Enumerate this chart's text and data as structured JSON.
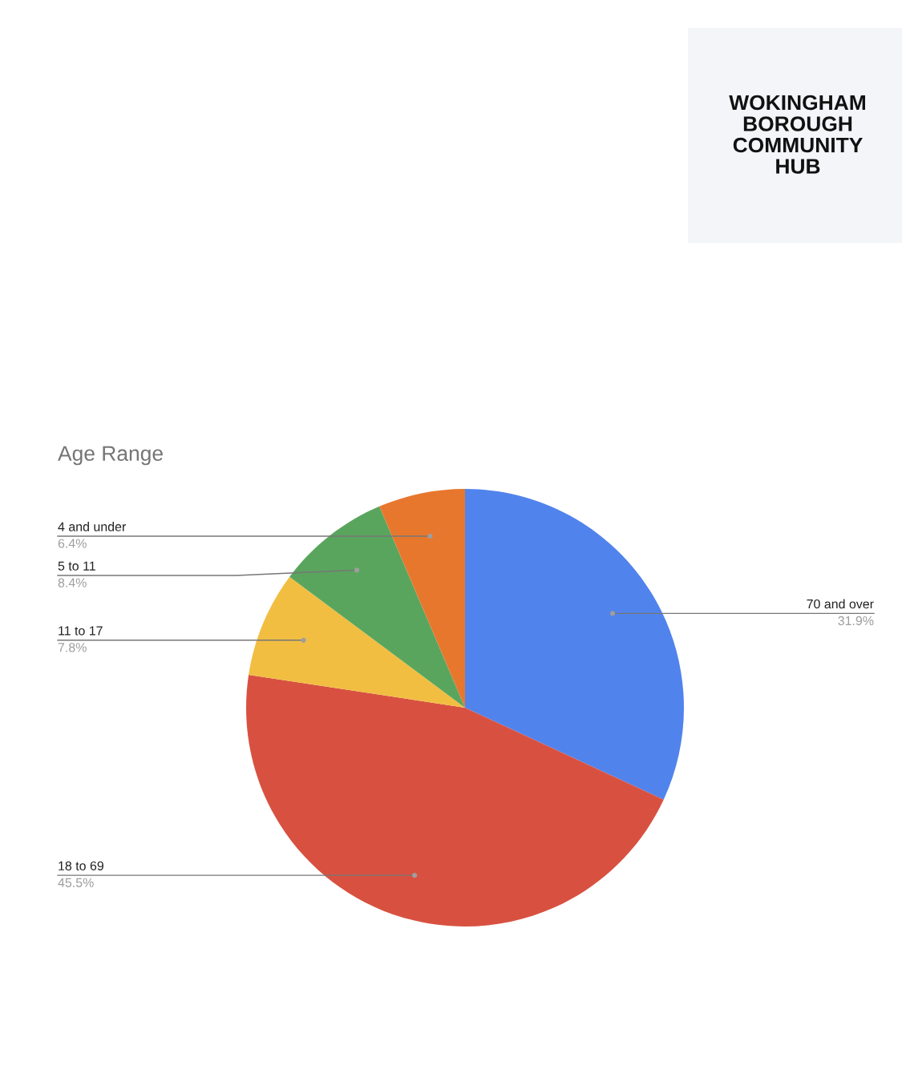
{
  "chart_data": {
    "type": "pie",
    "title": "Age Range",
    "categories": [
      "70 and over",
      "18 to 69",
      "11 to 17",
      "5 to 11",
      "4 and under"
    ],
    "values": [
      31.9,
      45.5,
      7.8,
      8.4,
      6.4
    ],
    "colors": [
      "#5183ed",
      "#d85140",
      "#f1be42",
      "#59a55d",
      "#e8772e"
    ],
    "value_labels": [
      "31.9%",
      "45.5%",
      "7.8%",
      "8.4%",
      "6.4%"
    ],
    "annotations": [
      "WOKINGHAM\nBOROUGH\nCOMMUNITY\nHUB"
    ],
    "legend": false
  }
}
